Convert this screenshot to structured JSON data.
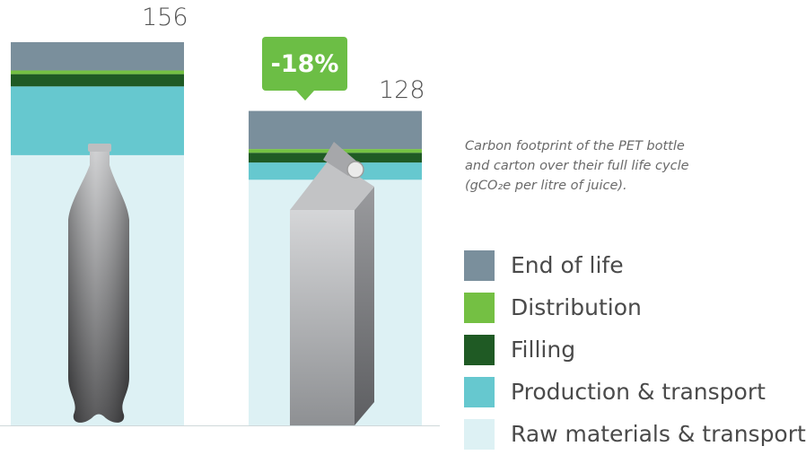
{
  "chart_data": {
    "type": "bar",
    "stacked": true,
    "title": "",
    "caption_lines": [
      "Carbon footprint of the PET bottle",
      "and carton over their full life cycle",
      "(gCO₂e per litre of juice)."
    ],
    "categories": [
      "PET bottle",
      "Carton"
    ],
    "totals": [
      "156",
      "128"
    ],
    "callout": "-18%",
    "series": [
      {
        "name": "Raw materials & transport",
        "color": "#ddf1f4",
        "values": [
          110,
          100
        ]
      },
      {
        "name": "Production & transport",
        "color": "#66c8cf",
        "values": [
          28,
          7
        ]
      },
      {
        "name": "Filling",
        "color": "#1f5a24",
        "values": [
          5,
          4
        ]
      },
      {
        "name": "Distribution",
        "color": "#74c043",
        "values": [
          1.5,
          1.5
        ]
      },
      {
        "name": "End of life",
        "color": "#7a8f9c",
        "values": [
          11.5,
          15.5
        ]
      }
    ],
    "legend_order": [
      "End of life",
      "Distribution",
      "Filling",
      "Production & transport",
      "Raw materials & transport"
    ],
    "ylim": [
      0,
      156
    ],
    "illustrations": [
      "bottle-icon",
      "carton-icon"
    ]
  }
}
